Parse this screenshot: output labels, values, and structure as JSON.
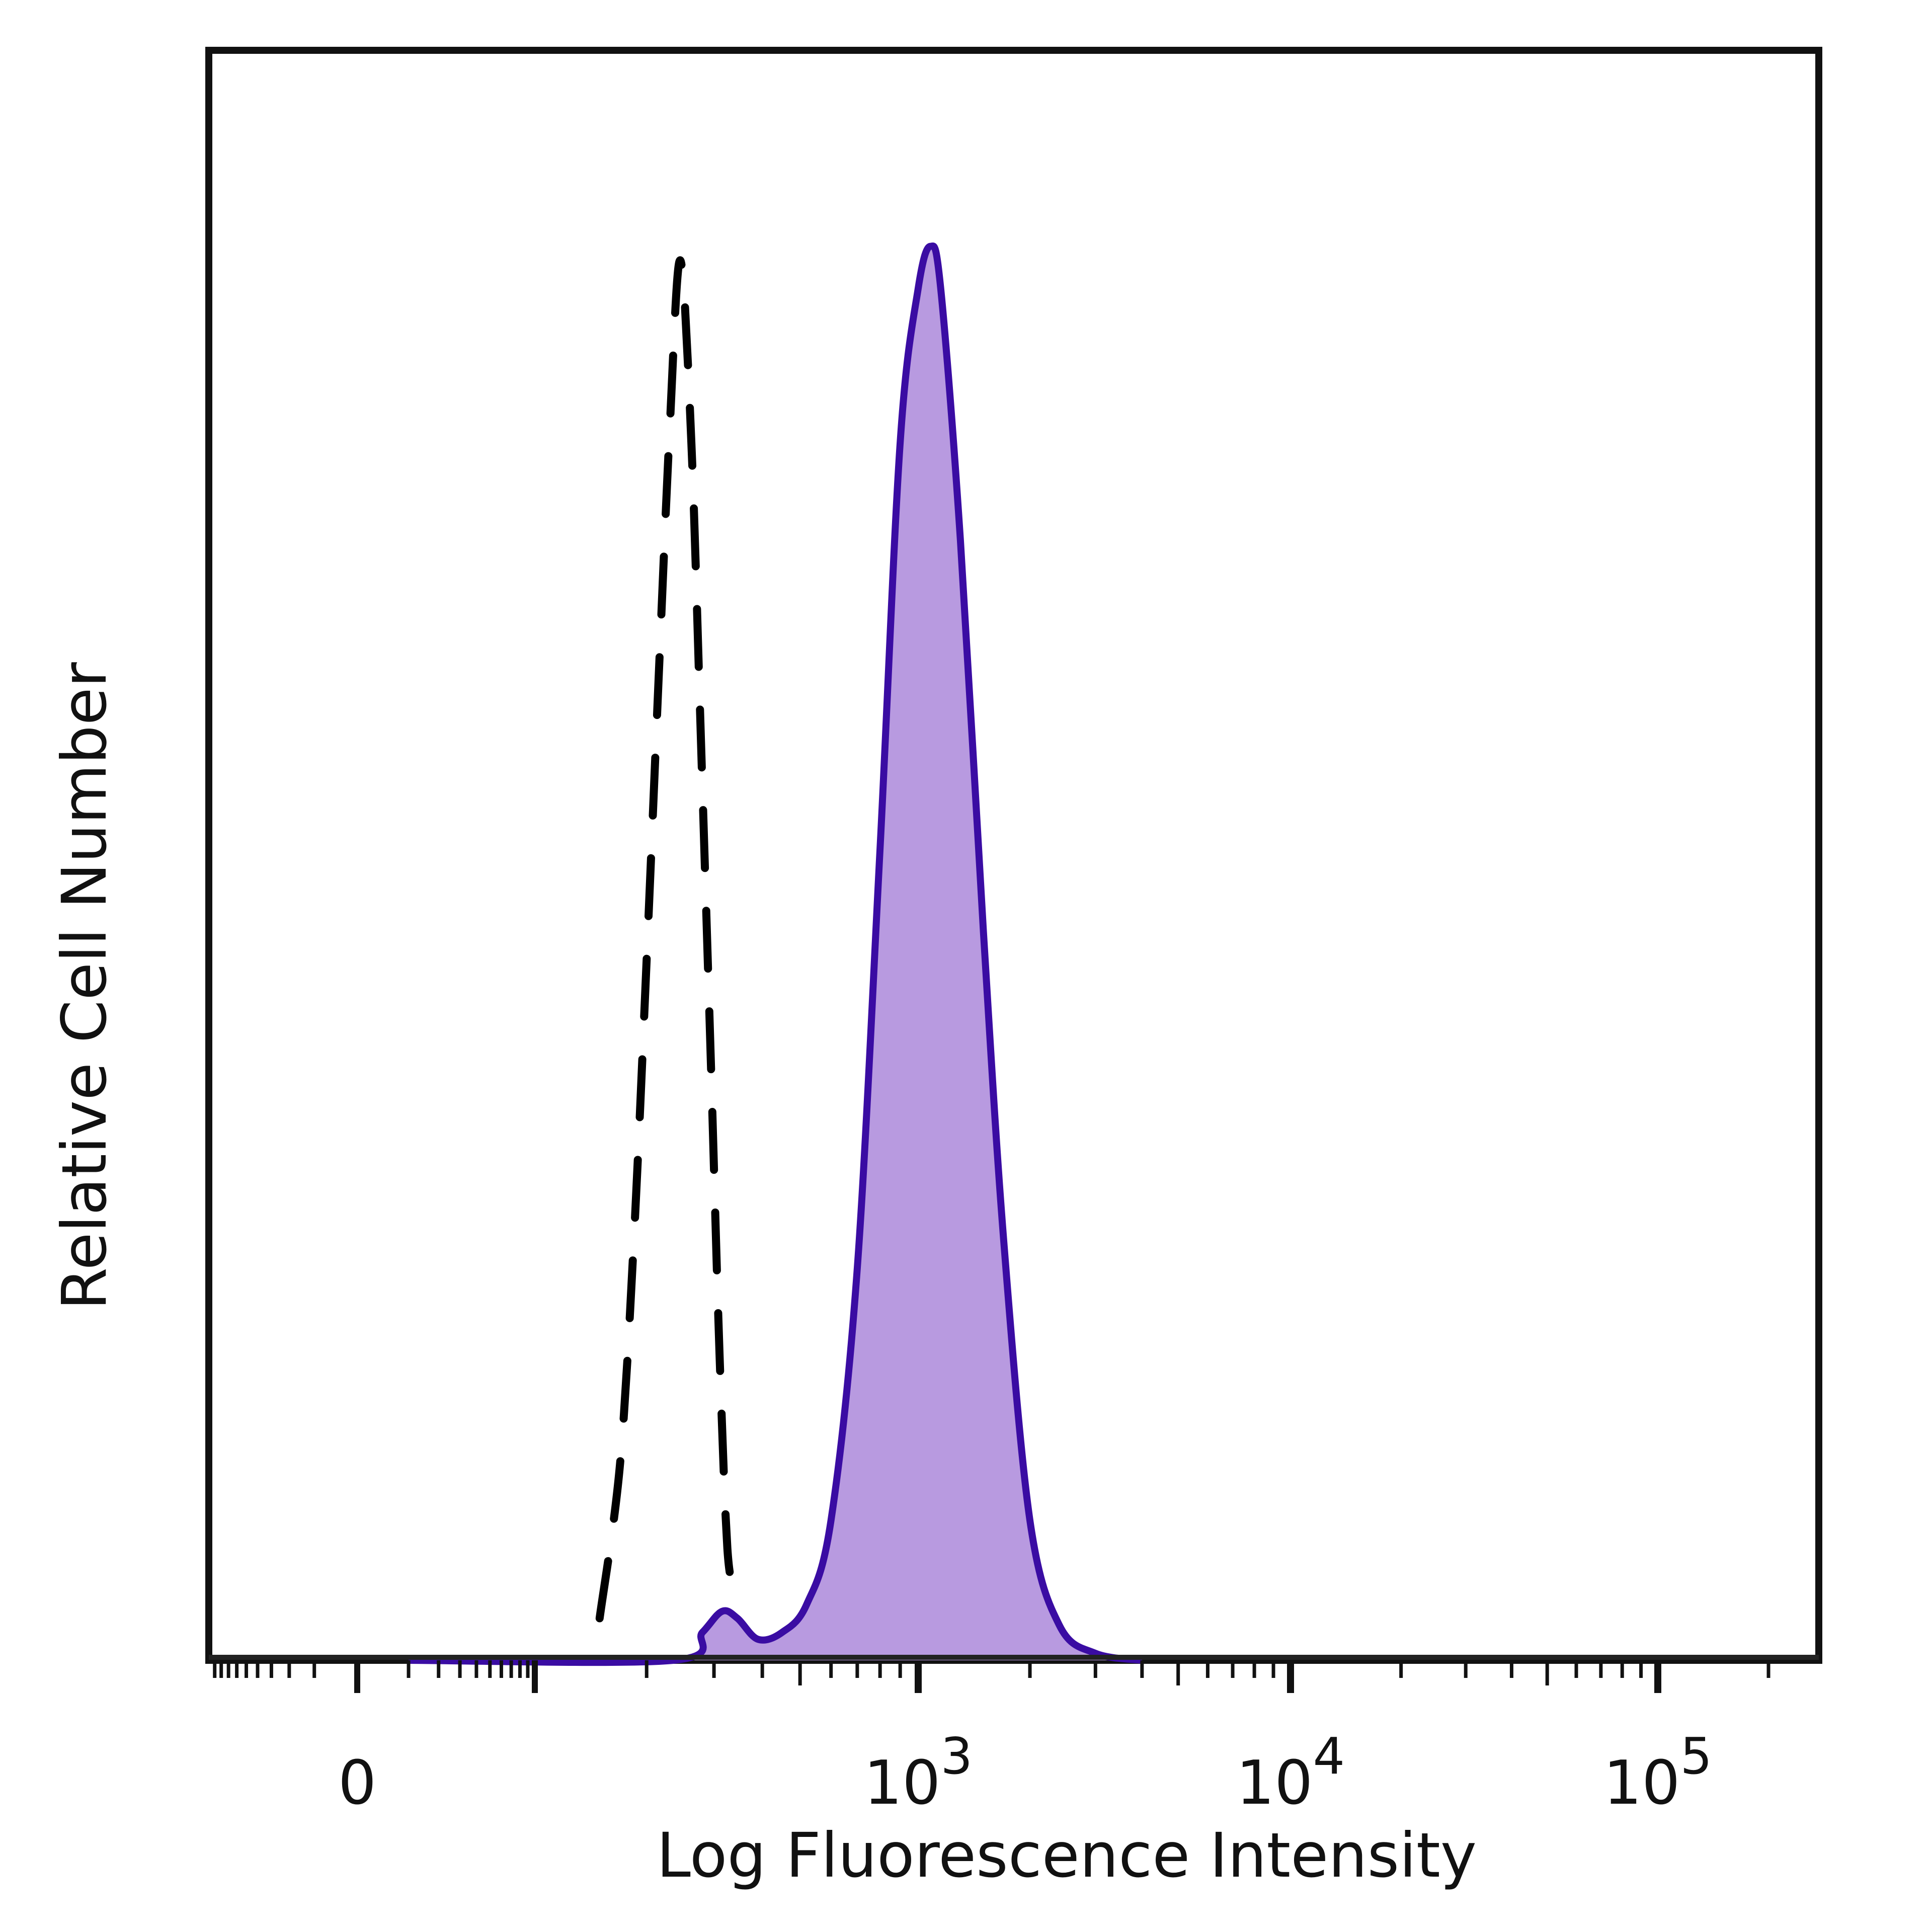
{
  "chart_data": {
    "type": "area",
    "title": "",
    "xlabel": "Log Fluorescence Intensity",
    "ylabel": "Relative Cell Number",
    "x_scale": "biexponential",
    "xlim": [
      -100,
      200000
    ],
    "ylim": [
      0,
      1.15
    ],
    "x_tick_labels": [
      {
        "value": 0,
        "base": "0",
        "exp": ""
      },
      {
        "value": 1000,
        "base": "10",
        "exp": "3"
      },
      {
        "value": 10000,
        "base": "10",
        "exp": "4"
      },
      {
        "value": 100000,
        "base": "10",
        "exp": "5"
      }
    ],
    "grid": false,
    "legend": "none",
    "series": [
      {
        "style": "dashed",
        "color": "#000000",
        "points": [
          [
            150,
            0.03
          ],
          [
            170,
            0.14
          ],
          [
            185,
            0.3
          ],
          [
            200,
            0.5
          ],
          [
            215,
            0.7
          ],
          [
            230,
            0.88
          ],
          [
            245,
            1.0
          ],
          [
            262,
            0.87
          ],
          [
            278,
            0.65
          ],
          [
            295,
            0.42
          ],
          [
            310,
            0.22
          ],
          [
            325,
            0.08
          ],
          [
            340,
            0.05
          ]
        ]
      },
      {
        "style": "filled",
        "color": "#3a0ca3",
        "fill": "#b89ae0",
        "points": [
          [
            10,
            0
          ],
          [
            235,
            0.0
          ],
          [
            280,
            0.02
          ],
          [
            315,
            0.035
          ],
          [
            345,
            0.03
          ],
          [
            390,
            0.015
          ],
          [
            450,
            0.02
          ],
          [
            520,
            0.04
          ],
          [
            600,
            0.1
          ],
          [
            700,
            0.28
          ],
          [
            800,
            0.58
          ],
          [
            900,
            0.87
          ],
          [
            1000,
            0.98
          ],
          [
            1080,
            1.01
          ],
          [
            1150,
            0.98
          ],
          [
            1300,
            0.8
          ],
          [
            1500,
            0.52
          ],
          [
            1700,
            0.3
          ],
          [
            2000,
            0.1
          ],
          [
            2400,
            0.025
          ],
          [
            3000,
            0.005
          ],
          [
            4000,
            0.0
          ]
        ]
      }
    ]
  }
}
